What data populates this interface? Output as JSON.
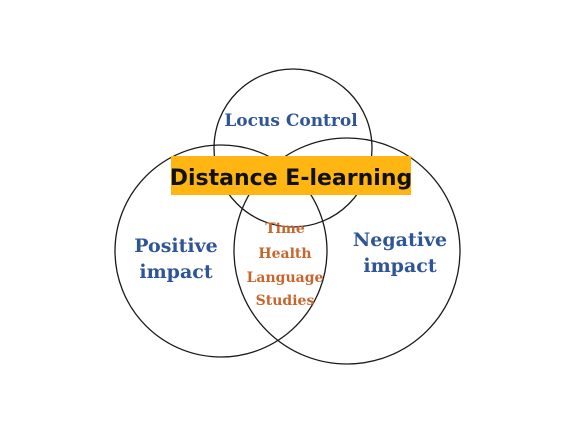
{
  "title": "Distance E-learning",
  "circles": {
    "top": {
      "label": "Locus Control"
    },
    "left": {
      "label_line1": "Positive",
      "label_line2": "impact"
    },
    "right": {
      "label_line1": "Negative",
      "label_line2": "impact"
    }
  },
  "intersection_items": [
    "Time",
    "Health",
    "Language",
    "Studies"
  ],
  "colors": {
    "circle_label": "#2e5597",
    "intersection_text": "#c7652c",
    "title_highlight": "#ffb612",
    "title_text": "#111111"
  }
}
